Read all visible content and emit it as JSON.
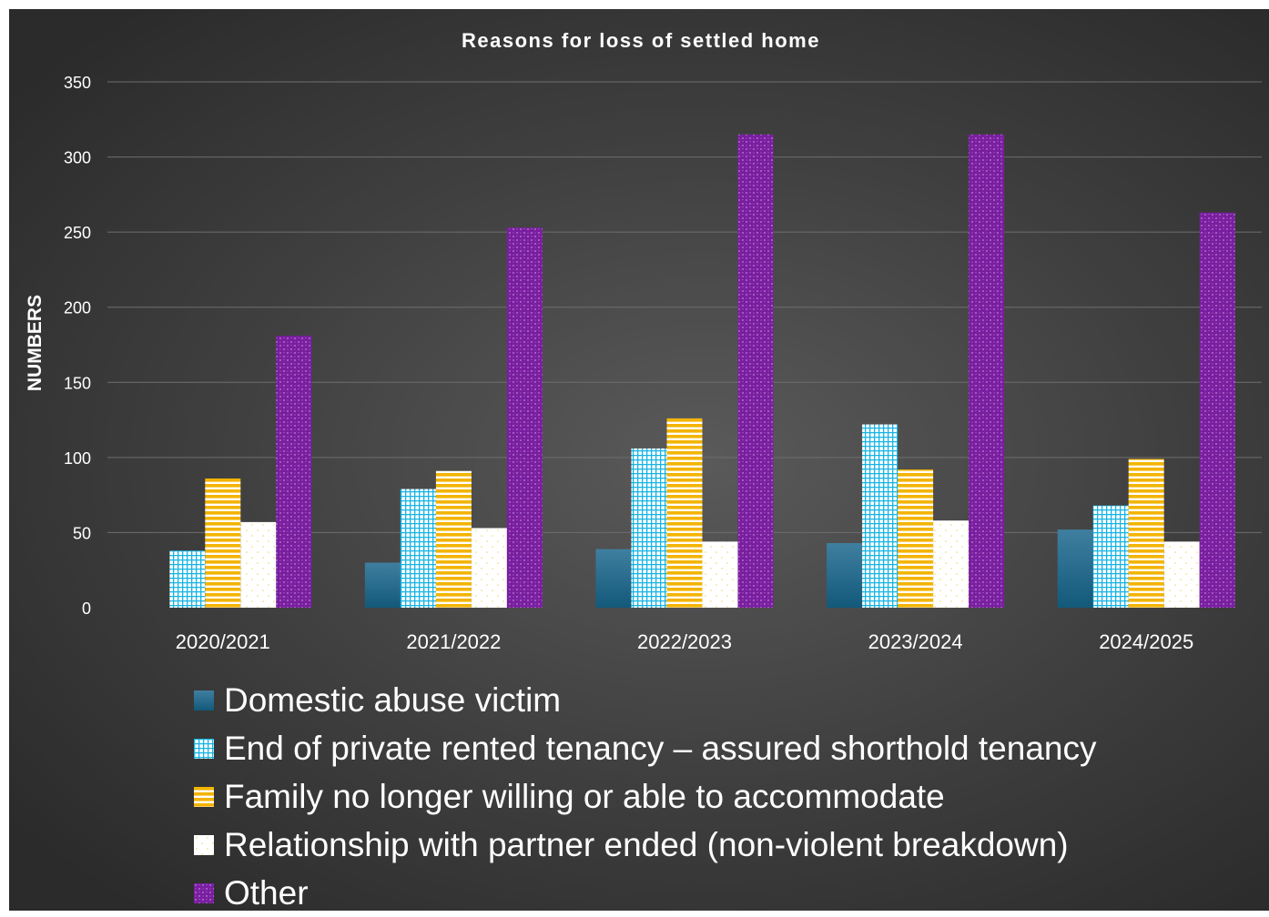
{
  "chart_data": {
    "type": "bar",
    "title": "Reasons for loss of settled home",
    "xlabel": "",
    "ylabel": "NUMBERS",
    "ylim": [
      0,
      350
    ],
    "yticks": [
      0,
      50,
      100,
      150,
      200,
      250,
      300,
      350
    ],
    "grid": true,
    "legend_position": "bottom",
    "categories": [
      "2020/2021",
      "2021/2022",
      "2022/2023",
      "2023/2024",
      "2024/2025"
    ],
    "series": [
      {
        "name": "Domestic abuse victim",
        "values": [
          0,
          30,
          39,
          43,
          52
        ],
        "color": "#1f6b8e",
        "pattern": "solid"
      },
      {
        "name": "End of private rented tenancy – assured shorthold tenancy",
        "values": [
          38,
          79,
          106,
          122,
          68
        ],
        "color": "#17b7e6",
        "pattern": "grid"
      },
      {
        "name": "Family no longer willing or able to accommodate",
        "values": [
          86,
          91,
          126,
          92,
          99
        ],
        "color": "#f5b800",
        "pattern": "stripes"
      },
      {
        "name": "Relationship with partner ended (non-violent breakdown)",
        "values": [
          57,
          53,
          44,
          58,
          44
        ],
        "color": "#fffbe8",
        "pattern": "dots"
      },
      {
        "name": "Other",
        "values": [
          181,
          253,
          315,
          315,
          263
        ],
        "color": "#7b1fa2",
        "pattern": "speckle"
      }
    ]
  }
}
